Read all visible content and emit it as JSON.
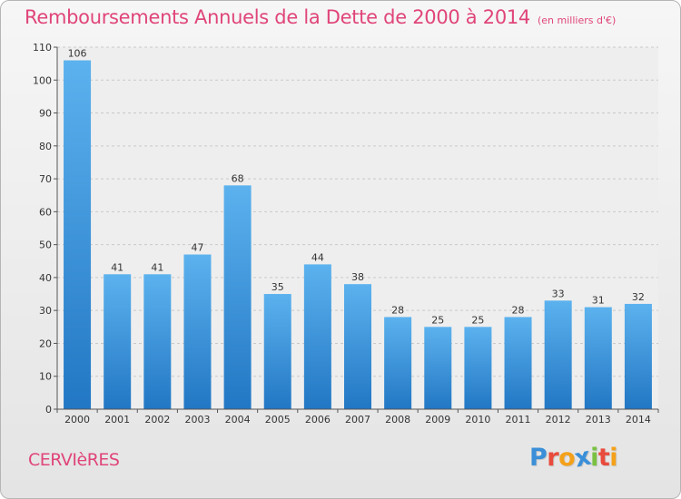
{
  "chart_data": {
    "type": "bar",
    "title": "Remboursements Annuels de la Dette de 2000 à 2014",
    "subtitle": "(en milliers d'€)",
    "categories": [
      "2000",
      "2001",
      "2002",
      "2003",
      "2004",
      "2005",
      "2006",
      "2007",
      "2008",
      "2009",
      "2010",
      "2011",
      "2012",
      "2013",
      "2014"
    ],
    "values": [
      106,
      41,
      41,
      47,
      68,
      35,
      44,
      38,
      28,
      25,
      25,
      28,
      33,
      31,
      32
    ],
    "ylim": [
      0,
      110
    ],
    "yticks": [
      0,
      10,
      20,
      30,
      40,
      50,
      60,
      70,
      80,
      90,
      100,
      110
    ],
    "grid": true,
    "bar_color": "#3d97dd"
  },
  "footer": {
    "commune": "CERVIèRES",
    "logo": {
      "letters": [
        "P",
        "r",
        "o",
        "x",
        "i",
        "t",
        "i"
      ],
      "colors": [
        "#3a8fd8",
        "#e94b3c",
        "#f4a11a",
        "#3a8fd8",
        "#7ac143",
        "#e94b3c",
        "#f4a11a"
      ]
    }
  }
}
